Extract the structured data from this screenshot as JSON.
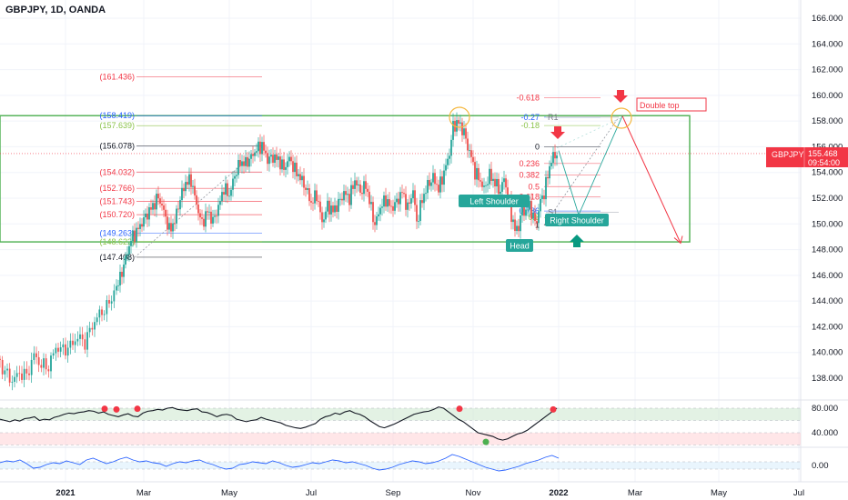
{
  "header": {
    "title": "GBPJPY, 1D, OANDA"
  },
  "price_badge": {
    "symbol": "GBPJPY",
    "price": "155.468",
    "countdown": "09:54:00"
  },
  "chart_data": [
    {
      "type": "candlestick",
      "title": "GBPJPY, 1D, OANDA",
      "ylim": [
        136,
        167
      ],
      "y_ticks": [
        "166.000",
        "164.000",
        "162.000",
        "160.000",
        "158.000",
        "156.000",
        "154.000",
        "152.000",
        "150.000",
        "148.000",
        "146.000",
        "144.000",
        "142.000",
        "140.000",
        "138.000"
      ],
      "x_ticks": [
        "2021",
        "Mar",
        "May",
        "Jul",
        "Sep",
        "Nov",
        "2022",
        "Mar",
        "May",
        "Jul"
      ],
      "price_path": [
        [
          0,
          139.5
        ],
        [
          8,
          138.5
        ],
        [
          16,
          137.8
        ],
        [
          24,
          138.4
        ],
        [
          32,
          138.2
        ],
        [
          40,
          139.8
        ],
        [
          48,
          139.0
        ],
        [
          56,
          138.9
        ],
        [
          64,
          140.4
        ],
        [
          72,
          140.2
        ],
        [
          80,
          140.5
        ],
        [
          88,
          141.2
        ],
        [
          96,
          140.8
        ],
        [
          104,
          142.1
        ],
        [
          112,
          143.0
        ],
        [
          120,
          143.5
        ],
        [
          128,
          144.7
        ],
        [
          134,
          145.8
        ],
        [
          140,
          147.3
        ],
        [
          146,
          148.8
        ],
        [
          152,
          149.4
        ],
        [
          158,
          150.1
        ],
        [
          164,
          150.8
        ],
        [
          170,
          151.4
        ],
        [
          176,
          152.1
        ],
        [
          182,
          151.0
        ],
        [
          188,
          149.5
        ],
        [
          194,
          150.2
        ],
        [
          200,
          152.0
        ],
        [
          206,
          153.2
        ],
        [
          212,
          153.4
        ],
        [
          218,
          151.5
        ],
        [
          224,
          150.0
        ],
        [
          230,
          151.0
        ],
        [
          236,
          150.2
        ],
        [
          242,
          151.3
        ],
        [
          248,
          152.8
        ],
        [
          254,
          152.2
        ],
        [
          260,
          153.8
        ],
        [
          266,
          154.8
        ],
        [
          272,
          154.7
        ],
        [
          278,
          155.2
        ],
        [
          284,
          155.8
        ],
        [
          290,
          156.1
        ],
        [
          296,
          155.0
        ],
        [
          302,
          155.2
        ],
        [
          308,
          155.0
        ],
        [
          314,
          154.3
        ],
        [
          320,
          155.1
        ],
        [
          326,
          154.2
        ],
        [
          332,
          153.6
        ],
        [
          338,
          152.8
        ],
        [
          344,
          151.6
        ],
        [
          350,
          152.3
        ],
        [
          356,
          150.1
        ],
        [
          362,
          151.4
        ],
        [
          368,
          151.0
        ],
        [
          374,
          151.6
        ],
        [
          380,
          152.4
        ],
        [
          386,
          152.0
        ],
        [
          392,
          153.4
        ],
        [
          398,
          152.5
        ],
        [
          404,
          153.0
        ],
        [
          410,
          151.2
        ],
        [
          414,
          149.9
        ],
        [
          420,
          151.3
        ],
        [
          426,
          151.9
        ],
        [
          432,
          151.2
        ],
        [
          438,
          151.7
        ],
        [
          444,
          152.5
        ],
        [
          450,
          151.2
        ],
        [
          456,
          152.6
        ],
        [
          460,
          150.1
        ],
        [
          466,
          151.9
        ],
        [
          472,
          153.0
        ],
        [
          478,
          153.6
        ],
        [
          484,
          152.7
        ],
        [
          490,
          154.0
        ],
        [
          496,
          155.5
        ],
        [
          500,
          157.6
        ],
        [
          506,
          157.9
        ],
        [
          512,
          157.1
        ],
        [
          516,
          156.0
        ],
        [
          520,
          155.2
        ],
        [
          524,
          154.0
        ],
        [
          528,
          153.6
        ],
        [
          534,
          152.7
        ],
        [
          540,
          153.8
        ],
        [
          546,
          153.2
        ],
        [
          552,
          152.5
        ],
        [
          556,
          153.6
        ],
        [
          560,
          152.2
        ],
        [
          564,
          150.7
        ],
        [
          568,
          149.5
        ],
        [
          572,
          149.8
        ],
        [
          576,
          151.2
        ],
        [
          580,
          150.9
        ],
        [
          584,
          151.5
        ],
        [
          588,
          150.4
        ],
        [
          592,
          150.2
        ],
        [
          596,
          151.8
        ],
        [
          600,
          152.4
        ],
        [
          604,
          153.8
        ],
        [
          608,
          155.0
        ],
        [
          614,
          155.5
        ]
      ],
      "horizontal_levels": [
        {
          "label": "(161.436)",
          "price": 161.436,
          "color": "#f23645"
        },
        {
          "label": "(158.419)",
          "price": 158.419,
          "color": "#2962ff"
        },
        {
          "label": "(157.639)",
          "price": 157.639,
          "color": "#8bc34a"
        },
        {
          "label": "(156.078)",
          "price": 156.078,
          "color": "#131722"
        },
        {
          "label": "(154.032)",
          "price": 154.032,
          "color": "#f23645"
        },
        {
          "label": "(152.766)",
          "price": 152.766,
          "color": "#f23645"
        },
        {
          "label": "(151.743)",
          "price": 151.743,
          "color": "#f23645"
        },
        {
          "label": "(150.720)",
          "price": 150.72,
          "color": "#f23645"
        },
        {
          "label": "(149.263)",
          "price": 149.263,
          "color": "#2962ff"
        },
        {
          "label": "(148.622)",
          "price": 148.622,
          "color": "#8bc34a"
        },
        {
          "label": "(147.408)",
          "price": 147.408,
          "color": "#131722"
        }
      ],
      "fib_levels": [
        {
          "label": "-0.618",
          "price": 159.8,
          "color": "#f23645"
        },
        {
          "label": "-0.27",
          "price": 158.3,
          "color": "#2962ff"
        },
        {
          "label": "R1",
          "price": 158.3,
          "color": "#787b86"
        },
        {
          "label": "-0.18",
          "price": 157.65,
          "color": "#8bc34a"
        },
        {
          "label": "0",
          "price": 156.0,
          "color": "#131722"
        },
        {
          "label": "0.236",
          "price": 154.7,
          "color": "#f23645"
        },
        {
          "label": "0.382",
          "price": 153.8,
          "color": "#f23645"
        },
        {
          "label": "0.5",
          "price": 152.9,
          "color": "#f23645"
        },
        {
          "label": "0.618",
          "price": 152.1,
          "color": "#f23645"
        },
        {
          "label": "0.786",
          "price": 151.0,
          "color": "#2962ff"
        },
        {
          "label": "S1",
          "price": 150.9,
          "color": "#787b86"
        },
        {
          "label": "0.8",
          "price": 150.5,
          "color": "#8bc34a"
        },
        {
          "label": "1",
          "price": 149.9,
          "color": "#131722"
        }
      ],
      "annotations": {
        "left_shoulder": "Left Shoulder",
        "head": "Head",
        "right_shoulder": "Right Shoulder",
        "double_top": "Double top"
      },
      "rectangle": {
        "top_price": 158.419,
        "bottom_price": 148.6,
        "color": "#4caf50"
      },
      "colors": {
        "up": "#26a69a",
        "down": "#ef5350",
        "up_wick": "#26a69a",
        "down_wick": "#ef5350"
      }
    },
    {
      "type": "line",
      "y_ticks": [
        "80.000",
        "40.000"
      ],
      "series": [
        {
          "values": [
            62,
            60,
            58,
            61,
            59,
            63,
            64,
            66,
            60,
            62,
            61,
            65,
            67,
            70,
            72,
            71,
            73,
            74,
            76,
            75,
            72,
            74,
            70,
            68,
            66,
            69,
            71,
            67,
            66,
            72,
            75,
            76,
            78,
            77,
            80,
            81,
            78,
            77,
            76,
            78,
            79,
            74,
            73,
            70,
            66,
            69,
            70,
            68,
            62,
            60,
            58,
            60,
            61,
            65,
            62,
            60,
            58,
            56,
            52,
            50,
            48,
            47,
            49,
            52,
            55,
            62,
            66,
            68,
            72,
            70,
            74,
            76,
            72,
            70,
            66,
            60,
            55,
            50,
            48,
            51,
            54,
            58,
            62,
            66,
            70,
            72,
            74,
            75,
            78,
            82,
            80,
            74,
            68,
            62,
            58,
            52,
            46,
            40,
            38,
            36,
            34,
            30,
            28,
            30,
            34,
            38,
            40,
            44,
            50,
            56,
            62,
            68,
            74,
            80
          ]
        }
      ]
    },
    {
      "type": "line",
      "y_ticks": [
        "0.00"
      ],
      "series": [
        {
          "values": [
            0.3,
            0.5,
            0.4,
            0.6,
            0.2,
            -0.3,
            -0.2,
            0.1,
            0.3,
            0.2,
            0.5,
            0.3,
            0.1,
            0.6,
            0.8,
            0.5,
            0.2,
            0.4,
            0.7,
            0.9,
            0.6,
            0.4,
            0.5,
            0.3,
            0.2,
            -0.1,
            0.2,
            0.4,
            0.3,
            0.5,
            0.6,
            0.3,
            0.1,
            -0.2,
            -0.4,
            -0.3,
            0.1,
            0.2,
            0.4,
            0.3,
            0.2,
            0.5,
            0.3,
            0.0,
            -0.2,
            -0.1,
            0.1,
            0.3,
            0.2,
            0.4,
            0.6,
            0.5,
            0.3,
            0.4,
            0.2,
            0.0,
            -0.3,
            -0.5,
            -0.4,
            -0.2,
            0.1,
            0.3,
            0.5,
            0.4,
            0.2,
            0.3,
            0.5,
            0.8,
            1.2,
            1.0,
            0.7,
            0.4,
            0.1,
            -0.2,
            -0.4,
            -0.6,
            -0.5,
            -0.3,
            -0.1,
            0.2,
            0.4,
            0.6,
            0.9,
            1.1,
            0.8
          ]
        }
      ]
    }
  ]
}
